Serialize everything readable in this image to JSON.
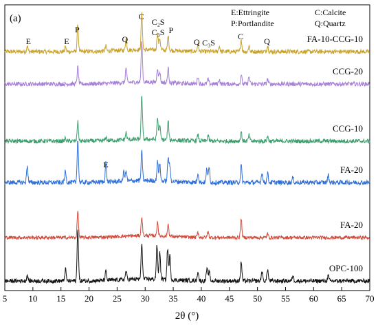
{
  "chart_data": {
    "type": "line",
    "panel_label": "(a)",
    "xlabel": "2θ (°)",
    "xlim": [
      5,
      70
    ],
    "x_ticks": [
      5,
      10,
      15,
      20,
      25,
      30,
      35,
      40,
      45,
      50,
      55,
      60,
      65,
      70
    ],
    "ylabel": "",
    "legend": [
      {
        "abbr": "E",
        "text": "E:Ettringite"
      },
      {
        "abbr": "C",
        "text": "C:Calcite"
      },
      {
        "abbr": "P",
        "text": "P:Portlandite"
      },
      {
        "abbr": "Q",
        "text": "Q:Quartz"
      }
    ],
    "series": [
      {
        "name": "FA-10-CCG-10",
        "color": "#c8a22a",
        "offset": 5,
        "noise": 0.55,
        "peaks": [
          [
            9.0,
            1.2
          ],
          [
            15.8,
            1.0
          ],
          [
            18.0,
            5.5
          ],
          [
            23.0,
            1.0
          ],
          [
            26.6,
            2.5
          ],
          [
            29.4,
            7.5
          ],
          [
            32.2,
            3.5
          ],
          [
            32.6,
            2.5
          ],
          [
            34.1,
            3.0
          ],
          [
            39.4,
            1.5
          ],
          [
            43.2,
            1.2
          ],
          [
            47.1,
            2.5
          ],
          [
            48.5,
            1.2
          ],
          [
            51.8,
            1.2
          ]
        ]
      },
      {
        "name": "CCG-20",
        "color": "#a57fd8",
        "offset": 4,
        "noise": 0.55,
        "peaks": [
          [
            18.0,
            3.5
          ],
          [
            26.6,
            3.0
          ],
          [
            29.4,
            8.5
          ],
          [
            32.2,
            3.0
          ],
          [
            32.6,
            2.2
          ],
          [
            34.1,
            3.0
          ],
          [
            39.4,
            1.5
          ],
          [
            41.2,
            1.0
          ],
          [
            43.2,
            1.0
          ],
          [
            47.1,
            2.0
          ],
          [
            48.5,
            1.5
          ],
          [
            51.8,
            1.0
          ]
        ]
      },
      {
        "name": "CCG-10",
        "color": "#3e9e6e",
        "offset": 3,
        "noise": 0.55,
        "peaks": [
          [
            15.8,
            0.6
          ],
          [
            18.0,
            4.0
          ],
          [
            23.0,
            0.7
          ],
          [
            26.6,
            1.5
          ],
          [
            29.4,
            9.0
          ],
          [
            32.2,
            4.5
          ],
          [
            32.6,
            3.0
          ],
          [
            34.1,
            3.8
          ],
          [
            39.4,
            1.2
          ],
          [
            41.2,
            1.2
          ],
          [
            47.1,
            2.0
          ],
          [
            48.5,
            1.2
          ],
          [
            51.8,
            1.0
          ]
        ]
      },
      {
        "name": "FA-20",
        "color": "#2f6fd8",
        "offset": 2,
        "noise": 0.6,
        "peaks": [
          [
            9.0,
            3.5
          ],
          [
            15.8,
            2.5
          ],
          [
            18.0,
            9.0
          ],
          [
            23.0,
            4.0
          ],
          [
            26.2,
            2.0
          ],
          [
            26.6,
            2.0
          ],
          [
            29.4,
            6.0
          ],
          [
            32.2,
            4.0
          ],
          [
            32.6,
            3.5
          ],
          [
            34.1,
            5.0
          ],
          [
            34.4,
            3.0
          ],
          [
            39.4,
            2.0
          ],
          [
            41.0,
            3.0
          ],
          [
            41.4,
            3.0
          ],
          [
            47.1,
            3.5
          ],
          [
            50.8,
            2.0
          ],
          [
            51.8,
            2.0
          ],
          [
            56.3,
            1.0
          ],
          [
            62.6,
            1.5
          ]
        ]
      },
      {
        "name": "FA-20",
        "color": "#d24a3a",
        "offset": 1,
        "noise": 0.45,
        "peaks": [
          [
            18.0,
            5.5
          ],
          [
            29.4,
            4.0
          ],
          [
            32.2,
            3.0
          ],
          [
            34.1,
            2.5
          ],
          [
            39.4,
            1.0
          ],
          [
            41.2,
            1.2
          ],
          [
            47.1,
            4.0
          ],
          [
            51.8,
            0.8
          ]
        ]
      },
      {
        "name": "OPC-100",
        "color": "#111111",
        "offset": 0,
        "noise": 0.55,
        "peaks": [
          [
            9.0,
            1.2
          ],
          [
            15.8,
            2.5
          ],
          [
            18.0,
            11.0
          ],
          [
            23.0,
            1.8
          ],
          [
            26.6,
            1.8
          ],
          [
            29.4,
            7.5
          ],
          [
            32.1,
            7.0
          ],
          [
            32.6,
            6.0
          ],
          [
            34.0,
            6.5
          ],
          [
            34.4,
            5.0
          ],
          [
            39.4,
            2.0
          ],
          [
            41.0,
            2.5
          ],
          [
            41.4,
            2.0
          ],
          [
            47.1,
            4.0
          ],
          [
            50.8,
            2.0
          ],
          [
            51.8,
            2.5
          ],
          [
            56.3,
            1.2
          ],
          [
            62.6,
            1.0
          ]
        ]
      }
    ],
    "annotations": [
      {
        "text": "E",
        "x": 9.2,
        "row": 0
      },
      {
        "text": "E",
        "x": 16.0,
        "row": 0
      },
      {
        "text": "P",
        "x": 17.9,
        "row": 0,
        "up": true
      },
      {
        "text": "Q",
        "x": 26.4,
        "row": 0
      },
      {
        "text": "C",
        "x": 29.3,
        "row": 0,
        "up": true
      },
      {
        "text": "C₂S",
        "x": 32.3,
        "row": 0,
        "up2": true
      },
      {
        "text": "C₃S",
        "x": 32.3,
        "row": 0,
        "up": true
      },
      {
        "text": "P",
        "x": 34.6,
        "row": 0
      },
      {
        "text": "Q",
        "x": 39.2,
        "row": 0
      },
      {
        "text": "C₃S",
        "x": 41.3,
        "row": 0,
        "low": true
      },
      {
        "text": "C",
        "x": 47.0,
        "row": 0
      },
      {
        "text": "Q",
        "x": 51.7,
        "row": 0
      },
      {
        "text": "E",
        "x": 23.0,
        "row": 3
      }
    ]
  }
}
